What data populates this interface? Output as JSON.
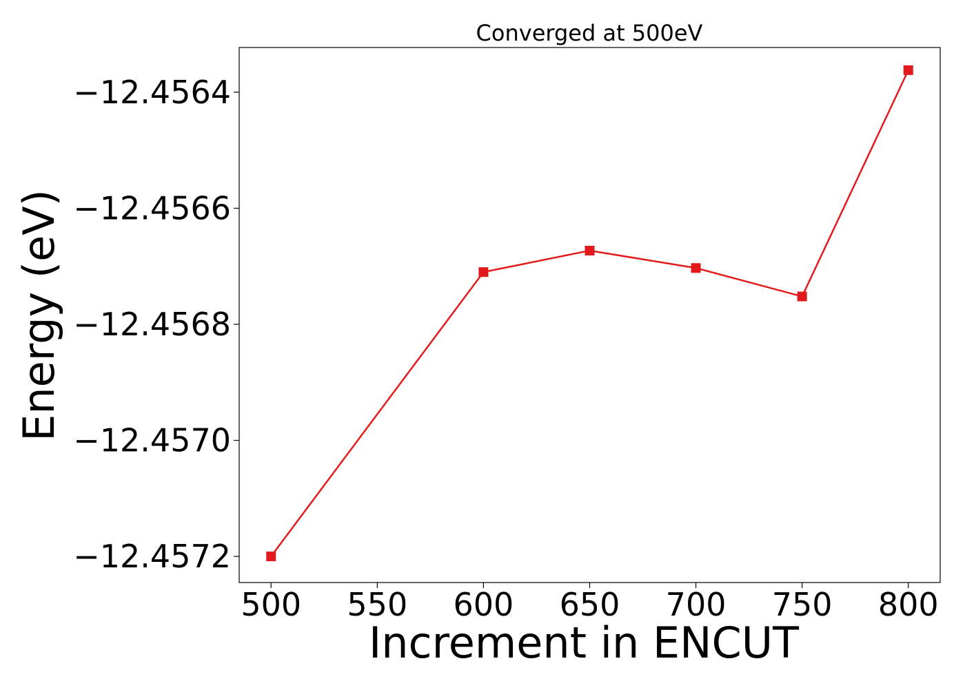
{
  "chart_data": {
    "type": "line",
    "title": "Converged at 500eV",
    "xlabel": "Increment in ENCUT",
    "ylabel": "Energy (eV)",
    "x": [
      500,
      600,
      650,
      700,
      750,
      800
    ],
    "series": [
      {
        "values": [
          -12.4572,
          -12.45671,
          -12.456673,
          -12.456703,
          -12.456752,
          -12.456362
        ],
        "color": "#e31a1c",
        "marker": "square"
      }
    ],
    "xlim": [
      485,
      815
    ],
    "ylim": [
      -12.457245,
      -12.456323
    ],
    "xticks": [
      500,
      550,
      600,
      650,
      700,
      750,
      800
    ],
    "xtick_labels": [
      "500",
      "550",
      "600",
      "650",
      "700",
      "750",
      "800"
    ],
    "yticks": [
      -12.4572,
      -12.457,
      -12.4568,
      -12.4566,
      -12.4564
    ],
    "ytick_labels": [
      "−12.4572",
      "−12.4570",
      "−12.4568",
      "−12.4566",
      "−12.4564"
    ],
    "grid": false,
    "legend": "none"
  }
}
